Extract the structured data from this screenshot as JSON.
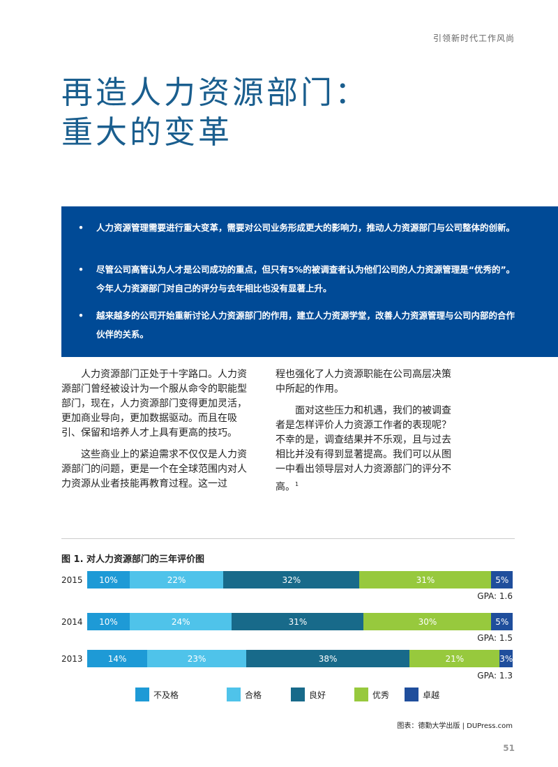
{
  "header": {
    "tag": "引领新时代工作风尚"
  },
  "title": {
    "line1": "再造人力资源部门：",
    "line2": "重大的变革"
  },
  "summary": {
    "bullet_glyph": "•",
    "items": [
      "人力资源管理需要进行重大变革，需要对公司业务形成更大的影响力，推动人力资源部门与公司整体的创新。",
      "尽管公司高管认为人才是公司成功的重点，但只有5%的被调查者认为他们公司的人力资源管理是“优秀的”。今年人力资源部门对自己的评分与去年相比也没有显著上升。",
      "越来越多的公司开始重新讨论人力资源部门的作用，建立人力资源学堂，改善人力资源管理与公司内部的合作伙伴的关系。"
    ]
  },
  "body": {
    "left": [
      "人力资源部门正处于十字路口。人力资源部门曾经被设计为一个服从命令的职能型部门，现在，人力资源部门变得更加灵活，更加商业导向，更加数据驱动。而且在吸引、保留和培养人才上具有更高的技巧。",
      "这些商业上的紧迫需求不仅仅是人力资源部门的问题，更是一个在全球范围内对人力资源从业者技能再教育过程。这一过"
    ],
    "right": [
      "程也强化了人力资源职能在公司高层决策中所起的作用。",
      "面对这些压力和机遇，我们的被调查者是怎样评价人力资源工作者的表现呢？不幸的是，调查结果并不乐观，且与过去相比并没有得到显著提高。我们可以从图一中看出领导层对人力资源部门的评分不高。"
    ],
    "footnote": "1"
  },
  "chart_data": {
    "type": "bar",
    "orientation": "horizontal-stacked-100",
    "title": "图 1. 对人力资源部门的三年评价图",
    "categories": [
      "2015",
      "2014",
      "2013"
    ],
    "series": [
      {
        "name": "不及格",
        "color": "#1e9ad6",
        "values": [
          10,
          10,
          14
        ]
      },
      {
        "name": "合格",
        "color": "#4fc3ea",
        "values": [
          22,
          24,
          23
        ]
      },
      {
        "name": "良好",
        "color": "#186a8a",
        "values": [
          32,
          31,
          38
        ]
      },
      {
        "name": "优秀",
        "color": "#97c93d",
        "values": [
          31,
          30,
          21
        ]
      },
      {
        "name": "卓越",
        "color": "#1f4e9c",
        "values": [
          5,
          5,
          3
        ]
      }
    ],
    "gpa": [
      "GPA: 1.6",
      "GPA: 1.5",
      "GPA: 1.3"
    ],
    "value_suffix": "%",
    "legend_position": "bottom",
    "source": "图表：德勤大学出版 | DUPress.com"
  },
  "page_number": "51"
}
